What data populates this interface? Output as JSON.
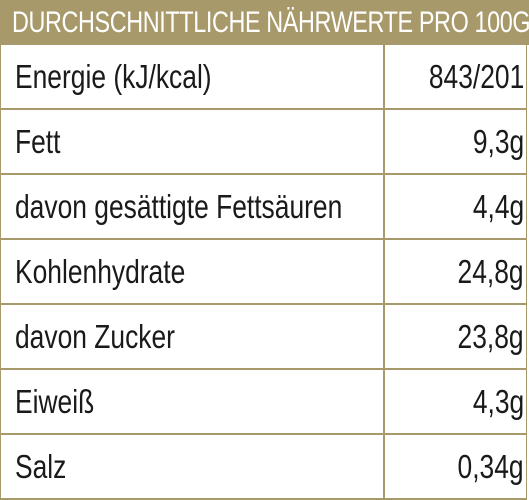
{
  "header": {
    "title": "DURCHSCHNITTLICHE NÄHRWERTE PRO 100G"
  },
  "rows": [
    {
      "label": "Energie (kJ/kcal)",
      "value": "843/201"
    },
    {
      "label": "Fett",
      "value": "9,3g"
    },
    {
      "label": "davon gesättigte Fettsäuren",
      "value": "4,4g"
    },
    {
      "label": "Kohlenhydrate",
      "value": "24,8g"
    },
    {
      "label": "davon Zucker",
      "value": "23,8g"
    },
    {
      "label": "Eiweiß",
      "value": "4,3g"
    },
    {
      "label": "Salz",
      "value": "0,34g"
    }
  ],
  "colors": {
    "accent": "#a8996a",
    "text": "#1a1a1a",
    "header_text": "#ffffff"
  }
}
